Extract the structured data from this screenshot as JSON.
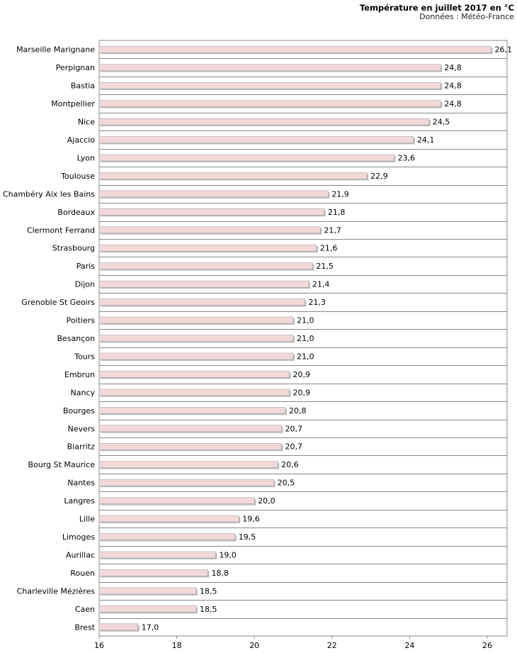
{
  "chart_data": {
    "type": "bar",
    "orientation": "horizontal",
    "title": "Température en juillet 2017 en °C",
    "subtitle": "Données : Météo-France",
    "xlabel": "",
    "ylabel": "",
    "xlim": [
      16,
      26.5
    ],
    "x_ticks": [
      16,
      18,
      20,
      22,
      24,
      26
    ],
    "bar_color": "#f2d9d9",
    "bar_border_color": "#999999",
    "categories": [
      "Marseille Marignane",
      "Perpignan",
      "Bastia",
      "Montpellier",
      "Nice",
      "Ajaccio",
      "Lyon",
      "Toulouse",
      "Chambéry Aix les Bains",
      "Bordeaux",
      "Clermont Ferrand",
      "Strasbourg",
      "Paris",
      "Dijon",
      "Grenoble St Geoirs",
      "Poitiers",
      "Besançon",
      "Tours",
      "Embrun",
      "Nancy",
      "Bourges",
      "Nevers",
      "Biarritz",
      "Bourg St Maurice",
      "Nantes",
      "Langres",
      "Lille",
      "Limoges",
      "Aurillac",
      "Rouen",
      "Charleville Mézières",
      "Caen",
      "Brest"
    ],
    "values": [
      26.1,
      24.8,
      24.8,
      24.8,
      24.5,
      24.1,
      23.6,
      22.9,
      21.9,
      21.8,
      21.7,
      21.6,
      21.5,
      21.4,
      21.3,
      21.0,
      21.0,
      21.0,
      20.9,
      20.9,
      20.8,
      20.7,
      20.7,
      20.6,
      20.5,
      20.0,
      19.6,
      19.5,
      19.0,
      18.8,
      18.5,
      18.5,
      17.0
    ],
    "value_labels": [
      "26,1",
      "24,8",
      "24,8",
      "24,8",
      "24,5",
      "24,1",
      "23,6",
      "22,9",
      "21,9",
      "21,8",
      "21,7",
      "21,6",
      "21,5",
      "21,4",
      "21,3",
      "21,0",
      "21,0",
      "21,0",
      "20,9",
      "20,9",
      "20,8",
      "20,7",
      "20,7",
      "20,6",
      "20,5",
      "20,0",
      "19,6",
      "19,5",
      "19,0",
      "18,8",
      "18,5",
      "18,5",
      "17,0"
    ]
  }
}
